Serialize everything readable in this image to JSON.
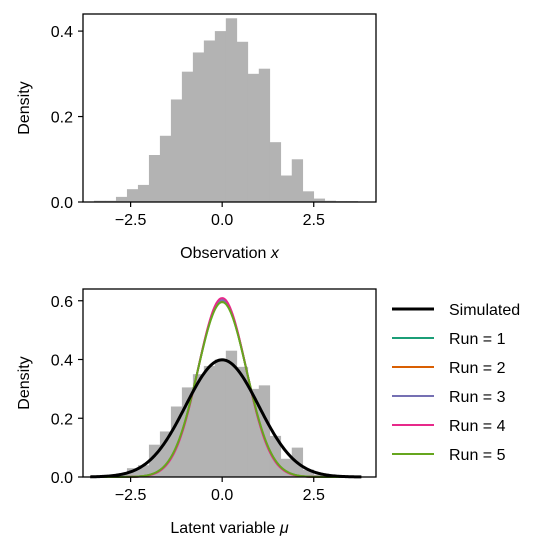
{
  "chart_data": [
    {
      "type": "bar",
      "title": "",
      "xlabel": "Observation x",
      "xlabel_main": "Observation ",
      "xlabel_var": "x",
      "ylabel": "Density",
      "xlim": [
        -3.8,
        4.2
      ],
      "ylim": [
        0,
        0.44
      ],
      "xticks": [
        -2.5,
        0.0,
        2.5
      ],
      "xtick_labels": [
        "−2.5",
        "0.0",
        "2.5"
      ],
      "yticks": [
        0.0,
        0.2,
        0.4
      ],
      "ytick_labels": [
        "0.0",
        "0.2",
        "0.4"
      ],
      "bar_color": "#b3b3b3",
      "bin_edges": [
        -3.5,
        -3.2,
        -2.9,
        -2.6,
        -2.3,
        -2.0,
        -1.7,
        -1.4,
        -1.1,
        -0.8,
        -0.5,
        -0.2,
        0.1,
        0.4,
        0.7,
        1.0,
        1.3,
        1.6,
        1.9,
        2.2,
        2.5,
        2.8,
        3.1,
        3.4,
        3.7
      ],
      "values": [
        0.003,
        0.003,
        0.012,
        0.03,
        0.04,
        0.11,
        0.155,
        0.24,
        0.305,
        0.35,
        0.378,
        0.4,
        0.43,
        0.375,
        0.3,
        0.312,
        0.14,
        0.062,
        0.1,
        0.025,
        0.008,
        0.003,
        0.002,
        0.002
      ]
    },
    {
      "type": "line",
      "title": "",
      "xlabel": "Latent variable μ",
      "xlabel_main": "Latent variable ",
      "xlabel_var": "μ",
      "ylabel": "Density",
      "xlim": [
        -3.8,
        4.2
      ],
      "ylim": [
        0,
        0.64
      ],
      "xticks": [
        -2.5,
        0.0,
        2.5
      ],
      "xtick_labels": [
        "−2.5",
        "0.0",
        "2.5"
      ],
      "yticks": [
        0.0,
        0.2,
        0.4,
        0.6
      ],
      "ytick_labels": [
        "0.0",
        "0.2",
        "0.4",
        "0.6"
      ],
      "histogram": {
        "bar_color": "#b3b3b3",
        "bin_edges": [
          -3.5,
          -3.2,
          -2.9,
          -2.6,
          -2.3,
          -2.0,
          -1.7,
          -1.4,
          -1.1,
          -0.8,
          -0.5,
          -0.2,
          0.1,
          0.4,
          0.7,
          1.0,
          1.3,
          1.6,
          1.9,
          2.2,
          2.5,
          2.8,
          3.1,
          3.4,
          3.7
        ],
        "values": [
          0.003,
          0.003,
          0.012,
          0.03,
          0.04,
          0.11,
          0.155,
          0.24,
          0.305,
          0.35,
          0.378,
          0.4,
          0.43,
          0.375,
          0.3,
          0.312,
          0.14,
          0.062,
          0.1,
          0.025,
          0.008,
          0.003,
          0.002,
          0.002
        ]
      },
      "curve_x_range": [
        -3.6,
        3.8
      ],
      "series": [
        {
          "name": "Simulated",
          "color": "#000000",
          "mean": 0.0,
          "sd": 1.0
        },
        {
          "name": "Run = 1",
          "color": "#1b9e77",
          "mean": 0.0,
          "sd": 0.665
        },
        {
          "name": "Run = 2",
          "color": "#d95f02",
          "mean": 0.0,
          "sd": 0.664
        },
        {
          "name": "Run = 3",
          "color": "#7570b3",
          "mean": 0.0,
          "sd": 0.662
        },
        {
          "name": "Run = 4",
          "color": "#e7298a",
          "mean": 0.0,
          "sd": 0.655
        },
        {
          "name": "Run = 5",
          "color": "#66a61e",
          "mean": 0.0,
          "sd": 0.67
        }
      ],
      "legend": {
        "placement": "outside-right",
        "entries": [
          "Simulated",
          "Run = 1",
          "Run = 2",
          "Run = 3",
          "Run = 4",
          "Run = 5"
        ]
      }
    }
  ]
}
